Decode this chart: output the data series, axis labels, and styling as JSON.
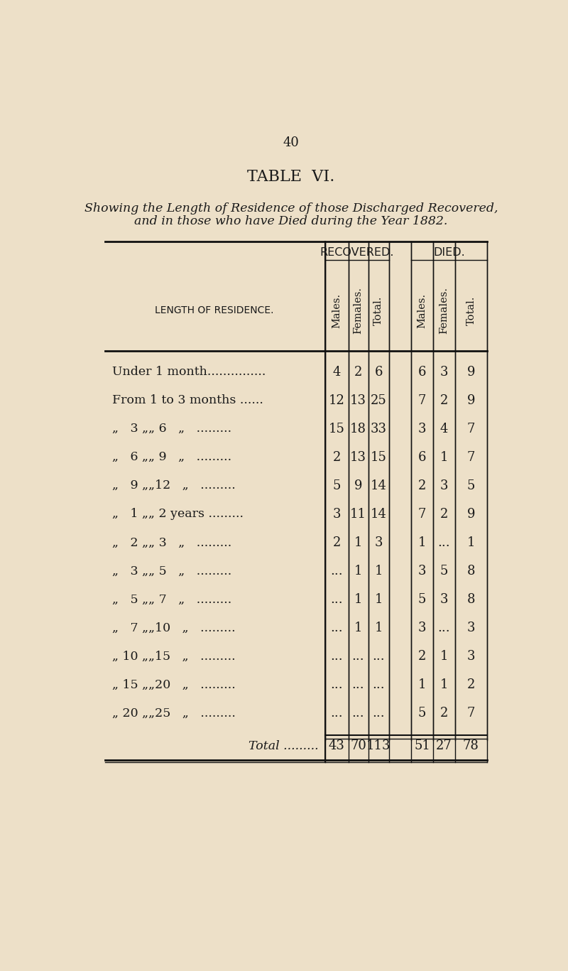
{
  "page_number": "40",
  "table_title": "TABLE  VI.",
  "subtitle_line1": "Showing the Length of Residence of those Discharged Recovered,",
  "subtitle_line2": "and in those who have Died during the Year 1882.",
  "col_header_group1": "RECOVERED.",
  "col_header_group2": "DIED.",
  "col_headers": [
    "Males.",
    "Females.",
    "Total.",
    "Males.",
    "Females.",
    "Total."
  ],
  "row_label_col": "LENGTH OF RESIDENCE.",
  "rows": [
    {
      "label": "Under 1 month...............",
      "r_m": "4",
      "r_f": "2",
      "r_t": "6",
      "d_m": "6",
      "d_f": "3",
      "d_t": "9"
    },
    {
      "label": "From 1 to 3 months ......",
      "r_m": "12",
      "r_f": "13",
      "r_t": "25",
      "d_m": "7",
      "d_f": "2",
      "d_t": "9"
    },
    {
      "label": "„  3 „„ 6   „  .........",
      "r_m": "15",
      "r_f": "18",
      "r_t": "33",
      "d_m": "3",
      "d_f": "4",
      "d_t": "7"
    },
    {
      "label": "„  6 „„ 9   „  .........",
      "r_m": "2",
      "r_f": "13",
      "r_t": "15",
      "d_m": "6",
      "d_f": "1",
      "d_t": "7"
    },
    {
      "label": "„  9 „„12   „  .........",
      "r_m": "5",
      "r_f": "9",
      "r_t": "14",
      "d_m": "2",
      "d_f": "3",
      "d_t": "5"
    },
    {
      "label": "„  1 „„ 2 years .........",
      "r_m": "3",
      "r_f": "11",
      "r_t": "14",
      "d_m": "7",
      "d_f": "2",
      "d_t": "9"
    },
    {
      "label": "„  2 „„ 3   „  .........",
      "r_m": "2",
      "r_f": "1",
      "r_t": "3",
      "d_m": "1",
      "d_f": "...",
      "d_t": "1"
    },
    {
      "label": "„  3 „„ 5   „  .........",
      "r_m": "...",
      "r_f": "1",
      "r_t": "1",
      "d_m": "3",
      "d_f": "5",
      "d_t": "8"
    },
    {
      "label": "„  5 „„ 7   „  .........",
      "r_m": "...",
      "r_f": "1",
      "r_t": "1",
      "d_m": "5",
      "d_f": "3",
      "d_t": "8"
    },
    {
      "label": "„  7 „„10   „  .........",
      "r_m": "...",
      "r_f": "1",
      "r_t": "1",
      "d_m": "3",
      "d_f": "...",
      "d_t": "3"
    },
    {
      "label": "„ 10 „„15   „  .........",
      "r_m": "...",
      "r_f": "...",
      "r_t": "...",
      "d_m": "2",
      "d_f": "1",
      "d_t": "3"
    },
    {
      "label": "„ 15 „„20   „  .........",
      "r_m": "...",
      "r_f": "...",
      "r_t": "...",
      "d_m": "1",
      "d_f": "1",
      "d_t": "2"
    },
    {
      "label": "„ 20 „„25   „  .........",
      "r_m": "...",
      "r_f": "...",
      "r_t": "...",
      "d_m": "5",
      "d_f": "2",
      "d_t": "7"
    }
  ],
  "total_row": {
    "label": "Total .........",
    "r_m": "43",
    "r_f": "70",
    "r_t": "113",
    "d_m": "51",
    "d_f": "27",
    "d_t": "78"
  },
  "bg_color": "#EDE0C8",
  "text_color": "#1a1a1a",
  "line_color": "#111111"
}
